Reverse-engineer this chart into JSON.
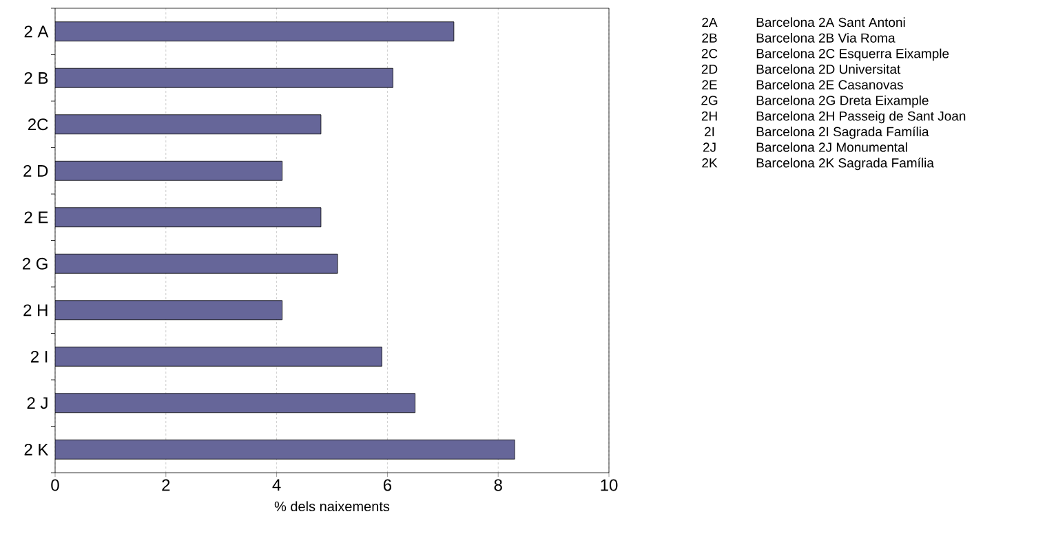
{
  "chart_data": {
    "type": "bar",
    "orientation": "horizontal",
    "xlabel": "% dels naixements",
    "categories": [
      "2 A",
      "2 B",
      "2C",
      "2 D",
      "2 E",
      "2 G",
      "2 H",
      "2 I",
      "2 J",
      "2 K"
    ],
    "values": [
      7.2,
      6.1,
      4.8,
      4.1,
      4.8,
      5.1,
      4.1,
      5.9,
      6.5,
      8.3
    ],
    "color": "#666699",
    "xlim": [
      0,
      10
    ],
    "xticks": [
      0,
      2,
      4,
      6,
      8,
      10
    ],
    "grid": "x",
    "annotations": [
      "2A",
      "Barcelona 2A Sant Antoni",
      "2B",
      "Barcelona 2B Via Roma",
      "2C",
      "Barcelona 2C Esquerra Eixample",
      "2D",
      "Barcelona 2D Universitat",
      "2E",
      "Barcelona 2E Casanovas",
      "2G",
      "Barcelona 2G Dreta Eixample",
      "2H",
      "Barcelona 2H Passeig de Sant Joan",
      "2I",
      "Barcelona 2I Sagrada Família",
      "2J",
      "Barcelona 2J Monumental",
      "2K",
      "Barcelona 2K Sagrada Família"
    ]
  }
}
